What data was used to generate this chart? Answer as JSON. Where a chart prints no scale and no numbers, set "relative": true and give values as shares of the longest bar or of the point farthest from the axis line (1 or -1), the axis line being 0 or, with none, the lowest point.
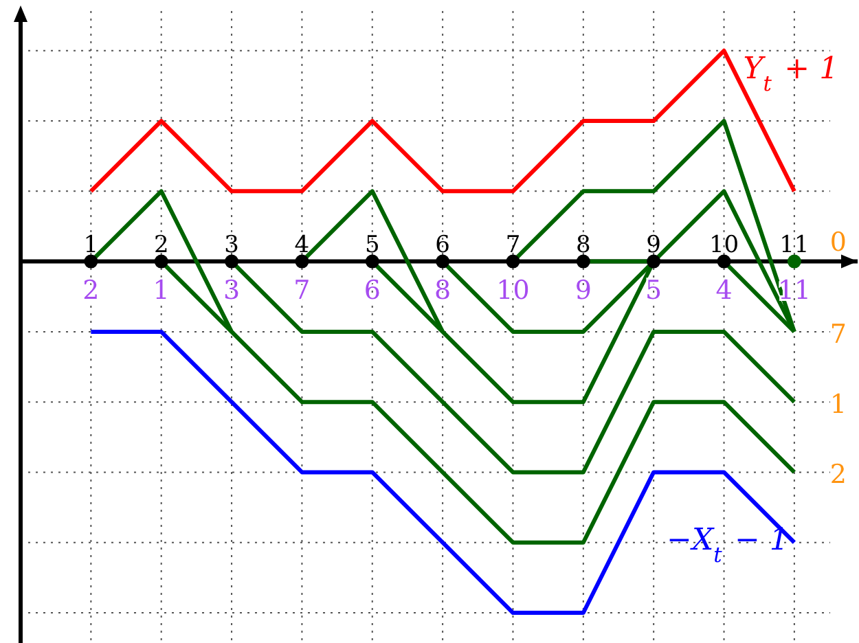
{
  "chart_data": {
    "type": "line",
    "relative": true,
    "grid": true,
    "legend": false,
    "line_style": "solid",
    "xlim": [
      0,
      11.9
    ],
    "xticks": [
      1,
      2,
      3,
      4,
      5,
      6,
      7,
      8,
      9,
      10,
      11
    ],
    "series": [
      {
        "name": "Y$_{t}$ + 1",
        "color": "#ff0000",
        "x": [
          1,
          2,
          3,
          4,
          5,
          6,
          7,
          8,
          9,
          10,
          11
        ],
        "values": [
          0.2,
          0.4,
          0.2,
          0.2,
          0.4,
          0.2,
          0.2,
          0.4,
          0.4,
          0.6,
          0.2
        ]
      },
      {
        "name": "−X$_{t}$ − 1",
        "color": "#0000ff",
        "x": [
          1,
          2,
          3,
          4,
          5,
          6,
          7,
          8,
          9,
          10,
          11
        ],
        "values": [
          -0.2,
          -0.2,
          -0.4,
          -0.6,
          -0.6,
          -0.8,
          -1,
          -1,
          -0.6,
          -0.6,
          -0.8
        ]
      },
      {
        "color": "#006400",
        "x": [
          1,
          2,
          3,
          4,
          5,
          6,
          7,
          8,
          9,
          10,
          11
        ],
        "values": [
          0,
          0.2,
          -0.2,
          -0.4,
          -0.4,
          -0.6,
          -0.8,
          -0.8,
          -0.4,
          -0.4,
          -0.6
        ]
      },
      {
        "color": "#006400",
        "x": [
          2,
          3
        ],
        "values": [
          0,
          -0.2
        ]
      },
      {
        "color": "#006400",
        "x": [
          3,
          4,
          5,
          6,
          7,
          8,
          9,
          10,
          11
        ],
        "values": [
          0,
          -0.2,
          -0.2,
          -0.4,
          -0.6,
          -0.6,
          -0.2,
          -0.2,
          -0.4
        ]
      },
      {
        "color": "#006400",
        "x": [
          4,
          5,
          6
        ],
        "values": [
          0,
          0.2,
          -0.2
        ]
      },
      {
        "color": "#006400",
        "x": [
          5,
          6,
          7,
          8,
          9,
          10,
          11
        ],
        "values": [
          0,
          -0.2,
          -0.4,
          -0.4,
          0,
          0.2,
          -0.2
        ]
      },
      {
        "color": "#006400",
        "x": [
          6,
          7,
          8,
          9
        ],
        "values": [
          0,
          -0.2,
          -0.2,
          0
        ]
      },
      {
        "color": "#006400",
        "x": [
          7,
          8,
          9,
          10,
          11
        ],
        "values": [
          0,
          0.2,
          0.2,
          0.4,
          -0.2
        ]
      },
      {
        "color": "#006400",
        "x": [
          8,
          9
        ],
        "values": [
          0,
          0
        ]
      },
      {
        "color": "#006400",
        "x": [
          10,
          11
        ],
        "values": [
          0,
          -0.2
        ]
      },
      {
        "type": "scatter",
        "marker": "circle",
        "color": "#000000",
        "x": [
          1,
          2,
          3,
          4,
          5,
          6,
          7,
          8,
          9,
          10
        ],
        "values": [
          0,
          0,
          0,
          0,
          0,
          0,
          0,
          0,
          0,
          0
        ]
      },
      {
        "type": "scatter",
        "marker": "circle",
        "color": "#006400",
        "x": [
          11
        ],
        "values": [
          0
        ]
      }
    ],
    "annotations": [
      {
        "text": "2",
        "x": 1,
        "y": 0
      },
      {
        "text": "1",
        "x": 2,
        "y": 0
      },
      {
        "text": "3",
        "x": 3,
        "y": 0
      },
      {
        "text": "7",
        "x": 4,
        "y": 0
      },
      {
        "text": "6",
        "x": 5,
        "y": 0
      },
      {
        "text": "8",
        "x": 6,
        "y": 0
      },
      {
        "text": "10",
        "x": 7,
        "y": 0
      },
      {
        "text": "9",
        "x": 8,
        "y": 0
      },
      {
        "text": "5",
        "x": 9,
        "y": 0
      },
      {
        "text": "4",
        "x": 10,
        "y": 0
      },
      {
        "text": "11",
        "x": 11,
        "y": 0
      },
      {
        "text": "0",
        "x": 11,
        "y": 0
      },
      {
        "text": "7",
        "x": 11,
        "y": -0.2
      },
      {
        "text": "1",
        "x": 11,
        "y": -0.4
      },
      {
        "text": "2",
        "x": 11,
        "y": -0.6
      }
    ]
  }
}
